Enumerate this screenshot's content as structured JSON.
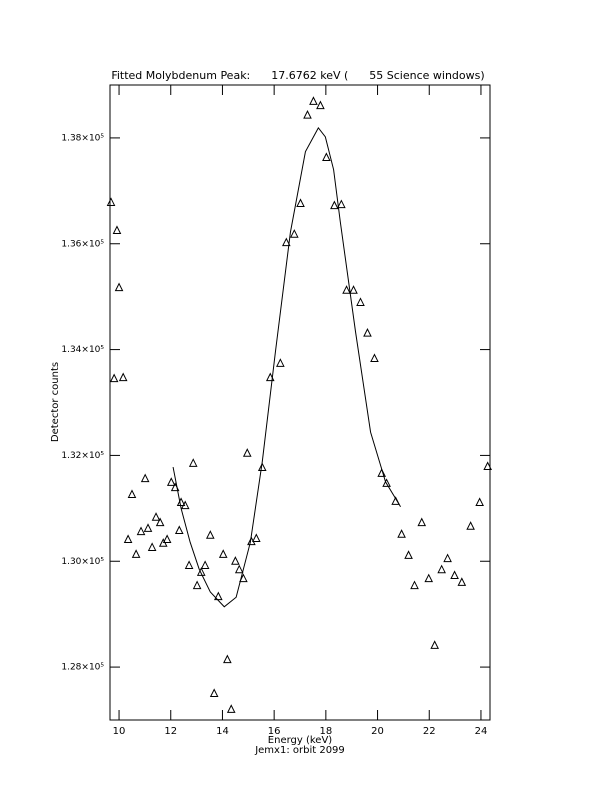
{
  "chart_data": {
    "type": "scatter",
    "title": "Fitted Molybdenum Peak:      17.6762 keV (      55 Science windows)",
    "x_label": "Energy (keV)",
    "y_label": "Detector counts",
    "caption": "Jemx1: orbit 2099",
    "xlim": [
      9.65,
      24.35
    ],
    "ylim": [
      127000,
      139000
    ],
    "xticks": [
      10,
      12,
      14,
      16,
      18,
      20,
      22,
      24
    ],
    "yticks": [
      {
        "value": 128000,
        "label": "1.28×10⁵"
      },
      {
        "value": 130000,
        "label": "1.30×10⁵"
      },
      {
        "value": 132000,
        "label": "1.32×10⁵"
      },
      {
        "value": 134000,
        "label": "1.34×10⁵"
      },
      {
        "value": 136000,
        "label": "1.36×10⁵"
      },
      {
        "value": 138000,
        "label": "1.38×10⁵"
      }
    ],
    "color": "#000000",
    "series": [
      {
        "marker": "triangle",
        "x": [
          9.69,
          9.81,
          9.92,
          10.0,
          10.16,
          10.35,
          10.5,
          10.66,
          10.85,
          11.01,
          11.12,
          11.28,
          11.43,
          11.59,
          11.71,
          11.86,
          12.02,
          12.17,
          12.33,
          12.4,
          12.56,
          12.71,
          12.87,
          13.02,
          13.18,
          13.33,
          13.53,
          13.68,
          13.84,
          14.03,
          14.19,
          14.34,
          14.5,
          14.65,
          14.81,
          14.96,
          15.12,
          15.31,
          15.54,
          15.85,
          16.24,
          16.47,
          16.78,
          17.02,
          17.29,
          17.52,
          17.79,
          18.02,
          18.33,
          18.6,
          18.8,
          19.07,
          19.34,
          19.61,
          19.88,
          20.16,
          20.35,
          20.7,
          20.93,
          21.2,
          21.43,
          21.71,
          21.98,
          22.21,
          22.48,
          22.71,
          22.98,
          23.26,
          23.6,
          23.95,
          24.26
        ],
        "values": [
          136790,
          133460,
          136260,
          135180,
          133480,
          130420,
          131270,
          130140,
          130570,
          131570,
          130630,
          130270,
          130840,
          130740,
          130350,
          130420,
          131500,
          131400,
          130590,
          131120,
          131060,
          129930,
          131860,
          129550,
          129800,
          129930,
          130500,
          127510,
          129340,
          130140,
          128150,
          127210,
          130010,
          129850,
          129680,
          132050,
          130380,
          130440,
          131780,
          133480,
          133750,
          136030,
          136190,
          136770,
          138440,
          138700,
          138620,
          137640,
          136730,
          136750,
          135130,
          135130,
          134900,
          134320,
          133840,
          131670,
          131480,
          131140,
          130520,
          130120,
          129550,
          130740,
          129680,
          128420,
          129850,
          130060,
          129740,
          129610,
          130670,
          131120,
          131800
        ]
      },
      {
        "mode": "line",
        "x": [
          12.09,
          12.4,
          12.75,
          13.1,
          13.53,
          14.07,
          14.53,
          15.08,
          15.54,
          16.05,
          16.63,
          17.21,
          17.71,
          17.98,
          18.3,
          18.56,
          19.15,
          19.73,
          20.31,
          20.89
        ],
        "values": [
          131780,
          131000,
          130360,
          129850,
          129420,
          129140,
          129320,
          130360,
          131880,
          133960,
          136220,
          137740,
          138190,
          138020,
          137400,
          136410,
          134330,
          132440,
          131500,
          131030
        ]
      }
    ]
  }
}
